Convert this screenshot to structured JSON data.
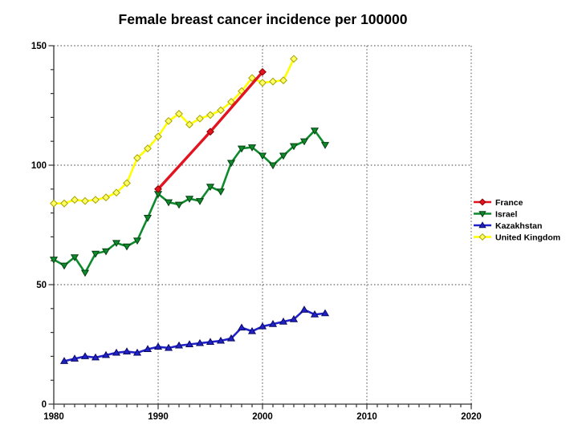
{
  "chart_data": {
    "type": "line",
    "title": "Female breast cancer incidence per 100000",
    "xlabel": "",
    "ylabel": "",
    "xlim": [
      1980,
      2020
    ],
    "ylim": [
      0,
      150
    ],
    "x_major_ticks": [
      1980,
      1990,
      2000,
      2010,
      2020
    ],
    "x_minor_step": 1,
    "y_major_ticks": [
      0,
      50,
      100,
      150
    ],
    "y_minor_step": 10,
    "grid": "dotted lines at major ticks; horizontal at 50/100/150, vertical at 1990/2000/2010/2020",
    "legend_position": "right-outside",
    "axis_color": "#333333",
    "grid_color": "#444444",
    "series": [
      {
        "name": "France",
        "color": "#e11420",
        "marker": "diamond",
        "marker_fill": "#e11420",
        "marker_edge": "#8a0000",
        "line_width": 3.4,
        "x": [
          1990,
          1995,
          2000
        ],
        "y": [
          90,
          114,
          139
        ]
      },
      {
        "name": "Israel",
        "color": "#0e8a2d",
        "marker": "triangle-down",
        "marker_fill": "#0e8a2d",
        "marker_edge": "#04400f",
        "line_width": 2.6,
        "x": [
          1980,
          1981,
          1982,
          1983,
          1984,
          1985,
          1986,
          1987,
          1988,
          1989,
          1990,
          1991,
          1992,
          1993,
          1994,
          1995,
          1996,
          1997,
          1998,
          1999,
          2000,
          2001,
          2002,
          2003,
          2004,
          2005,
          2006
        ],
        "y": [
          60.5,
          58,
          61.5,
          55,
          63,
          64,
          67.5,
          66,
          68.5,
          78,
          88,
          84.5,
          83.5,
          86,
          85,
          91,
          89,
          101,
          107,
          107.5,
          104,
          100,
          104,
          108,
          110,
          114.5,
          108.5
        ]
      },
      {
        "name": "Kazakhstan",
        "color": "#2021c8",
        "marker": "triangle-up",
        "marker_fill": "#2021c8",
        "marker_edge": "#0a0a60",
        "line_width": 2.6,
        "x": [
          1981,
          1982,
          1983,
          1984,
          1985,
          1986,
          1987,
          1988,
          1989,
          1990,
          1991,
          1992,
          1993,
          1994,
          1995,
          1996,
          1997,
          1998,
          1999,
          2000,
          2001,
          2002,
          2003,
          2004,
          2005,
          2006
        ],
        "y": [
          18,
          19,
          20,
          19.5,
          20.5,
          21.5,
          22,
          21.5,
          23,
          24,
          23.5,
          24.5,
          25,
          25.5,
          26,
          26.5,
          27.5,
          32,
          30.5,
          32.5,
          33.5,
          34.5,
          35.5,
          39.5,
          37.5,
          38
        ]
      },
      {
        "name": "United Kingdom",
        "color": "#ffff00",
        "marker": "diamond-open",
        "marker_fill": "#ffff66",
        "marker_edge": "#a8a200",
        "line_width": 2.6,
        "x": [
          1980,
          1981,
          1982,
          1983,
          1984,
          1985,
          1986,
          1987,
          1988,
          1989,
          1990,
          1991,
          1992,
          1993,
          1994,
          1995,
          1996,
          1997,
          1998,
          1999,
          2000,
          2001,
          2002,
          2003
        ],
        "y": [
          84,
          84,
          85.5,
          85,
          85.5,
          86.5,
          88.5,
          92.5,
          103,
          107,
          112,
          118.5,
          121.5,
          117,
          119.5,
          121,
          123,
          126.5,
          131,
          136.5,
          134.5,
          135,
          135.5,
          144.5
        ]
      }
    ]
  }
}
